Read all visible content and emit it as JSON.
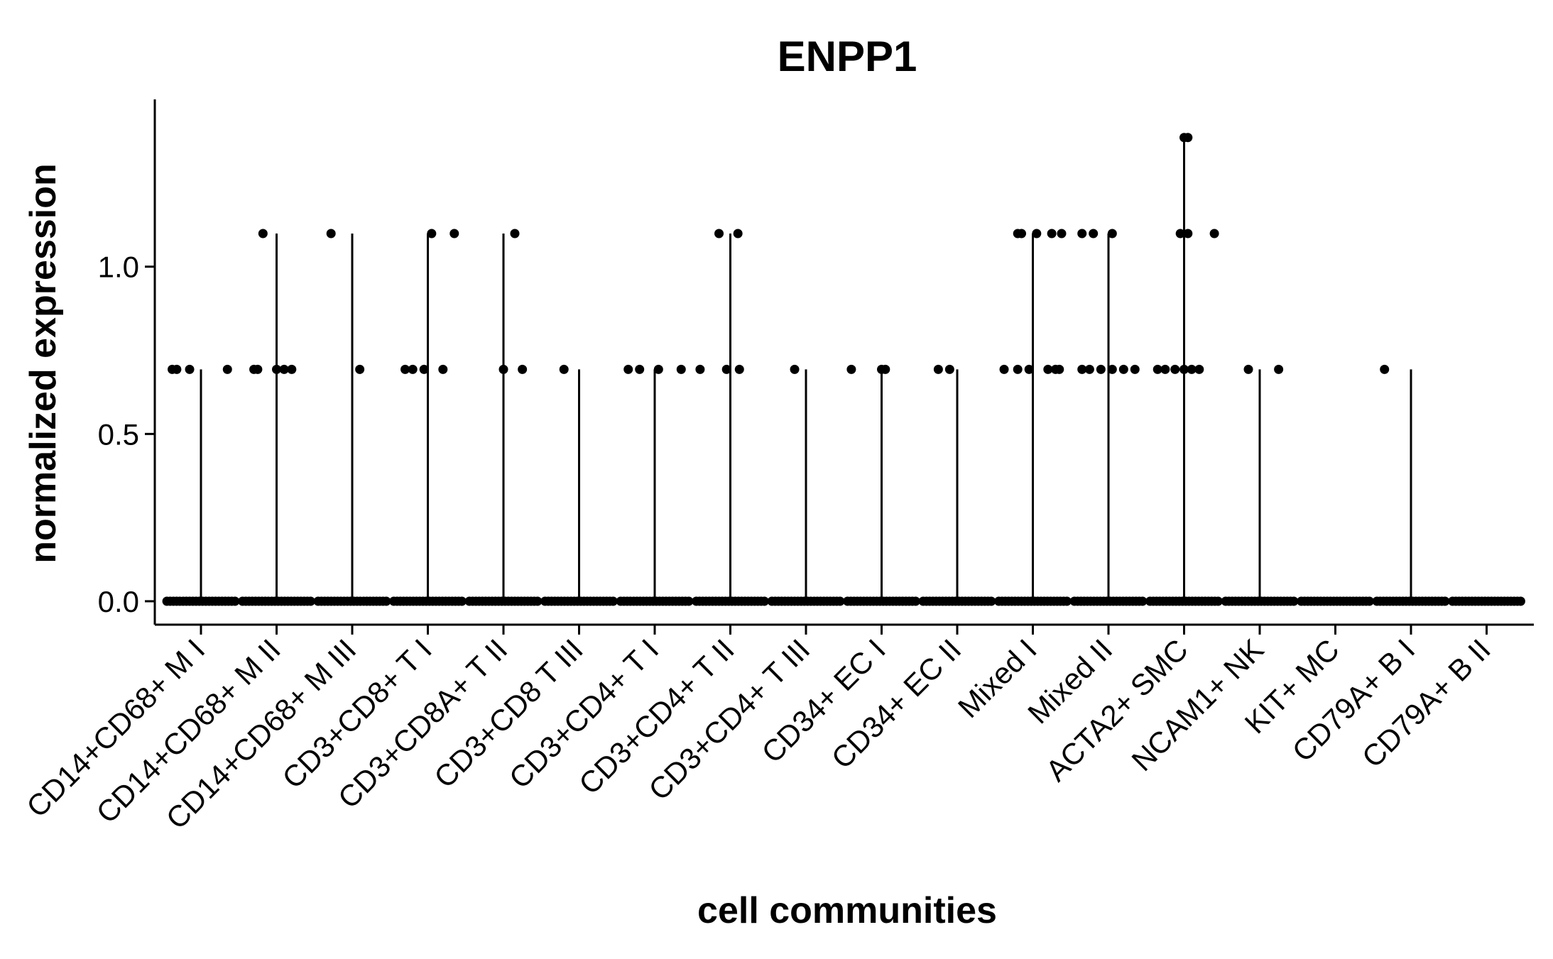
{
  "chart_data": {
    "type": "scatter",
    "title": "ENPP1",
    "xlabel": "cell communities",
    "ylabel": "normalized expression",
    "ylim": [
      -0.07,
      1.5
    ],
    "yticks": [
      0.0,
      0.5,
      1.0
    ],
    "ytick_labels": [
      "0.0",
      "0.5",
      "1.0"
    ],
    "grid": false,
    "categories": [
      "CD14+CD68+ M I",
      "CD14+CD68+ M II",
      "CD14+CD68+ M III",
      "CD3+CD8+ T I",
      "CD3+CD8A+ T II",
      "CD3+CD8 T III",
      "CD3+CD4+ T I",
      "CD3+CD4+ T II",
      "CD3+CD4+ T III",
      "CD34+ EC I",
      "CD34+ EC II",
      "Mixed I",
      "Mixed II",
      "ACTA2+ SMC",
      "NCAM1+ NK",
      "KIT+ MC",
      "CD79A+ B I",
      "CD79A+ B II"
    ],
    "violin_max": [
      0.693,
      1.099,
      1.099,
      1.099,
      1.099,
      0.693,
      0.693,
      1.099,
      0.693,
      0.693,
      0.693,
      1.099,
      1.099,
      1.386,
      0.693,
      0.0,
      0.693,
      0.0
    ],
    "points": [
      {
        "category": "CD14+CD68+ M I",
        "x_offset": [
          -0.38,
          -0.32,
          -0.15,
          0.35
        ],
        "y": [
          0.693,
          0.693,
          0.693,
          0.693
        ]
      },
      {
        "category": "CD14+CD68+ M II",
        "x_offset": [
          -0.18
        ],
        "y": [
          1.099
        ]
      },
      {
        "category": "CD14+CD68+ M II",
        "x_offset": [
          -0.3,
          -0.25,
          0.0,
          0.1,
          0.2
        ],
        "y": [
          0.693,
          0.693,
          0.693,
          0.693,
          0.693
        ]
      },
      {
        "category": "CD14+CD68+ M III",
        "x_offset": [
          -0.28
        ],
        "y": [
          1.099
        ]
      },
      {
        "category": "CD14+CD68+ M III",
        "x_offset": [
          0.1
        ],
        "y": [
          0.693
        ]
      },
      {
        "category": "CD3+CD8+ T I",
        "x_offset": [
          0.05,
          0.35
        ],
        "y": [
          1.099,
          1.099
        ]
      },
      {
        "category": "CD3+CD8+ T I",
        "x_offset": [
          -0.3,
          -0.2,
          -0.05,
          0.2
        ],
        "y": [
          0.693,
          0.693,
          0.693,
          0.693
        ]
      },
      {
        "category": "CD3+CD8A+ T II",
        "x_offset": [
          0.15
        ],
        "y": [
          1.099
        ]
      },
      {
        "category": "CD3+CD8A+ T II",
        "x_offset": [
          0.0,
          0.25
        ],
        "y": [
          0.693,
          0.693
        ]
      },
      {
        "category": "CD3+CD8 T III",
        "x_offset": [
          -0.2
        ],
        "y": [
          0.693
        ]
      },
      {
        "category": "CD3+CD4+ T I",
        "x_offset": [
          -0.35,
          -0.2,
          0.05,
          0.35,
          0.6
        ],
        "y": [
          0.693,
          0.693,
          0.693,
          0.693,
          0.693
        ]
      },
      {
        "category": "CD3+CD4+ T II",
        "x_offset": [
          -0.15,
          0.1
        ],
        "y": [
          1.099,
          1.099
        ]
      },
      {
        "category": "CD3+CD4+ T II",
        "x_offset": [
          -0.05,
          0.12
        ],
        "y": [
          0.693,
          0.693
        ]
      },
      {
        "category": "CD3+CD4+ T III",
        "x_offset": [
          -0.15
        ],
        "y": [
          0.693
        ]
      },
      {
        "category": "CD34+ EC I",
        "x_offset": [
          -0.4,
          0.0,
          0.05
        ],
        "y": [
          0.693,
          0.693,
          0.693
        ]
      },
      {
        "category": "CD34+ EC II",
        "x_offset": [
          -0.25,
          -0.1
        ],
        "y": [
          0.693,
          0.693
        ]
      },
      {
        "category": "Mixed I",
        "x_offset": [
          -0.2,
          -0.15,
          0.05,
          0.25,
          0.38
        ],
        "y": [
          1.099,
          1.099,
          1.099,
          1.099,
          1.099
        ]
      },
      {
        "category": "Mixed I",
        "x_offset": [
          -0.38,
          -0.2,
          -0.05,
          0.2,
          0.3,
          0.35
        ],
        "y": [
          0.693,
          0.693,
          0.693,
          0.693,
          0.693,
          0.693
        ]
      },
      {
        "category": "Mixed II",
        "x_offset": [
          -0.35,
          -0.2,
          0.05
        ],
        "y": [
          1.099,
          1.099,
          1.099
        ]
      },
      {
        "category": "Mixed II",
        "x_offset": [
          -0.35,
          -0.25,
          -0.1,
          0.05,
          0.2,
          0.35
        ],
        "y": [
          0.693,
          0.693,
          0.693,
          0.693,
          0.693,
          0.693
        ]
      },
      {
        "category": "ACTA2+ SMC",
        "x_offset": [
          0.0,
          0.05
        ],
        "y": [
          1.386,
          1.386
        ]
      },
      {
        "category": "ACTA2+ SMC",
        "x_offset": [
          -0.05,
          0.05,
          0.4
        ],
        "y": [
          1.099,
          1.099,
          1.099
        ]
      },
      {
        "category": "ACTA2+ SMC",
        "x_offset": [
          -0.35,
          -0.25,
          -0.12,
          0.0,
          0.1,
          0.2
        ],
        "y": [
          0.693,
          0.693,
          0.693,
          0.693,
          0.693,
          0.693
        ]
      },
      {
        "category": "NCAM1+ NK",
        "x_offset": [
          -0.15,
          0.25
        ],
        "y": [
          0.693,
          0.693
        ]
      },
      {
        "category": "CD79A+ B I",
        "x_offset": [
          -0.35
        ],
        "y": [
          0.693
        ]
      }
    ],
    "baseline_points": {
      "y": 0.0,
      "all_categories": true
    }
  }
}
